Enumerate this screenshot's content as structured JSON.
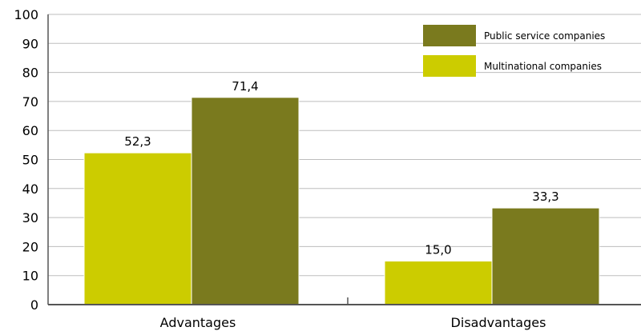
{
  "chart_data": {
    "type": "bar",
    "categories": [
      "Advantages",
      "Disadvantages"
    ],
    "series": [
      {
        "name": "Multinational companies",
        "values": [
          52.3,
          15.0
        ],
        "labels": [
          "52,3",
          "15,0"
        ],
        "color": "#cccc00"
      },
      {
        "name": "Public service companies",
        "values": [
          71.4,
          33.3
        ],
        "labels": [
          "71,4",
          "33,3"
        ],
        "color": "#7a7a1e"
      }
    ],
    "ylim": [
      0,
      100
    ],
    "yticks": [
      "0",
      "10",
      "20",
      "30",
      "40",
      "50",
      "60",
      "70",
      "80",
      "90",
      "100"
    ],
    "grid": true,
    "legend_position": "top-right",
    "legend_order": [
      "Public service companies",
      "Multinational companies"
    ],
    "colors": {
      "gridline": "#bdbdbd",
      "axis": "#555555"
    }
  }
}
